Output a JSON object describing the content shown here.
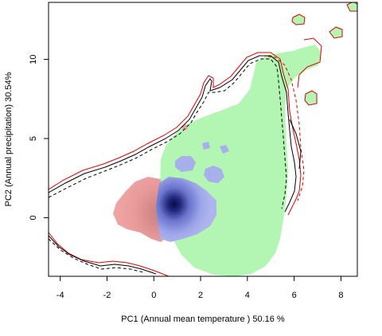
{
  "chart_data": {
    "type": "contour",
    "title": "",
    "xlabel": "PC1 (Annual mean temperature ) 50.16 %",
    "ylabel": "PC2 (Annual precipitation) 30.54%",
    "xlim": [
      -4.5,
      8.7
    ],
    "ylim": [
      -3.7,
      13.6
    ],
    "xticks": [
      -4,
      -2,
      0,
      2,
      4,
      6,
      8
    ],
    "yticks": [
      0,
      5,
      10
    ],
    "grid": false,
    "legend": "none",
    "colors": {
      "green_region": "#b3f5b3",
      "pink_region": "#f0a0a0",
      "blue_light": "#a8b0ec",
      "blue_dark": "#0c0c4a",
      "contour_red": "#e00000",
      "contour_black": "#000000"
    }
  }
}
